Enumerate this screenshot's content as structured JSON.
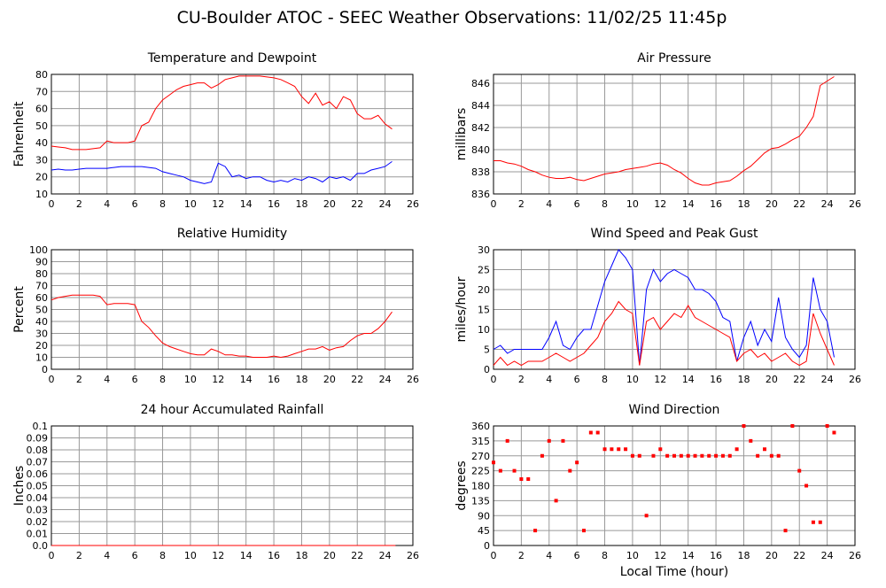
{
  "title": "CU-Boulder ATOC - SEEC Weather Observations: 11/02/25 11:45p",
  "chart_data": [
    {
      "type": "line",
      "title": "Temperature and Dewpoint",
      "ylabel": "Fahrenheit",
      "grid": true,
      "xlim": [
        0,
        26
      ],
      "xticks": [
        0,
        2,
        4,
        6,
        8,
        10,
        12,
        14,
        16,
        18,
        20,
        22,
        24,
        26
      ],
      "ylim": [
        10,
        80
      ],
      "yticks": [
        10,
        20,
        30,
        40,
        50,
        60,
        70,
        80
      ],
      "x": [
        0,
        0.5,
        1,
        1.5,
        2,
        2.5,
        3,
        3.5,
        4,
        4.5,
        5,
        5.5,
        6,
        6.5,
        7,
        7.5,
        8,
        8.5,
        9,
        9.5,
        10,
        10.5,
        11,
        11.5,
        12,
        12.5,
        13,
        13.5,
        14,
        14.5,
        15,
        15.5,
        16,
        16.5,
        17,
        17.5,
        18,
        18.5,
        19,
        19.5,
        20,
        20.5,
        21,
        21.5,
        22,
        22.5,
        23,
        23.5,
        24,
        24.5
      ],
      "series": [
        {
          "color": "#ff0000",
          "values": [
            38,
            37.5,
            37,
            36,
            36,
            36,
            36.5,
            37,
            41,
            40,
            40,
            40,
            41,
            50,
            52,
            60,
            65,
            68,
            71,
            73,
            74,
            75,
            75,
            72,
            74,
            77,
            78,
            79,
            79,
            79,
            79,
            78.5,
            78,
            77,
            75,
            73,
            67,
            63,
            69,
            62,
            64,
            60,
            67,
            65,
            57,
            54,
            54,
            56,
            51,
            48
          ]
        },
        {
          "color": "#0000ff",
          "values": [
            24,
            24.5,
            24,
            24,
            24.5,
            25,
            25,
            25,
            25,
            25.5,
            26,
            26,
            26,
            26,
            25.5,
            25,
            23,
            22,
            21,
            20,
            18,
            17,
            16,
            17,
            28,
            26,
            20,
            21,
            19,
            20,
            20,
            18,
            17,
            18,
            17,
            19,
            18,
            20,
            19,
            17,
            20,
            19,
            20,
            18,
            22,
            22,
            24,
            25,
            26,
            29
          ]
        }
      ]
    },
    {
      "type": "line",
      "title": "Air Pressure",
      "ylabel": "millibars",
      "grid": true,
      "xlim": [
        0,
        26
      ],
      "xticks": [
        0,
        2,
        4,
        6,
        8,
        10,
        12,
        14,
        16,
        18,
        20,
        22,
        24,
        26
      ],
      "ylim": [
        836,
        846.8
      ],
      "yticks": [
        836,
        838,
        840,
        842,
        844,
        846
      ],
      "x": [
        0,
        0.5,
        1,
        1.5,
        2,
        2.5,
        3,
        3.5,
        4,
        4.5,
        5,
        5.5,
        6,
        6.5,
        7,
        7.5,
        8,
        8.5,
        9,
        9.5,
        10,
        10.5,
        11,
        11.5,
        12,
        12.5,
        13,
        13.5,
        14,
        14.5,
        15,
        15.5,
        16,
        16.5,
        17,
        17.5,
        18,
        18.5,
        19,
        19.5,
        20,
        20.5,
        21,
        21.5,
        22,
        22.5,
        23,
        23.5,
        24,
        24.5
      ],
      "series": [
        {
          "color": "#ff0000",
          "values": [
            839,
            839,
            838.8,
            838.7,
            838.5,
            838.2,
            838,
            837.7,
            837.5,
            837.4,
            837.4,
            837.5,
            837.3,
            837.2,
            837.4,
            837.6,
            837.8,
            837.9,
            838,
            838.2,
            838.3,
            838.4,
            838.5,
            838.7,
            838.8,
            838.6,
            838.2,
            837.9,
            837.4,
            837,
            836.8,
            836.8,
            837,
            837.1,
            837.2,
            837.6,
            838.1,
            838.5,
            839.1,
            839.7,
            840.1,
            840.2,
            840.5,
            840.9,
            841.2,
            842,
            843,
            845.8,
            846.2,
            846.6
          ]
        }
      ]
    },
    {
      "type": "line",
      "title": "Relative Humidity",
      "ylabel": "Percent",
      "grid": true,
      "xlim": [
        0,
        26
      ],
      "xticks": [
        0,
        2,
        4,
        6,
        8,
        10,
        12,
        14,
        16,
        18,
        20,
        22,
        24,
        26
      ],
      "ylim": [
        0,
        100
      ],
      "yticks": [
        0,
        10,
        20,
        30,
        40,
        50,
        60,
        70,
        80,
        90,
        100
      ],
      "x": [
        0,
        0.5,
        1,
        1.5,
        2,
        2.5,
        3,
        3.5,
        4,
        4.5,
        5,
        5.5,
        6,
        6.5,
        7,
        7.5,
        8,
        8.5,
        9,
        9.5,
        10,
        10.5,
        11,
        11.5,
        12,
        12.5,
        13,
        13.5,
        14,
        14.5,
        15,
        15.5,
        16,
        16.5,
        17,
        17.5,
        18,
        18.5,
        19,
        19.5,
        20,
        20.5,
        21,
        21.5,
        22,
        22.5,
        23,
        23.5,
        24,
        24.5
      ],
      "series": [
        {
          "color": "#ff0000",
          "values": [
            58,
            60,
            61,
            62,
            62,
            62,
            62,
            61,
            54,
            55,
            55,
            55,
            54,
            40,
            35,
            28,
            22,
            19,
            17,
            15,
            13,
            12,
            12,
            17,
            15,
            12,
            12,
            11,
            11,
            10,
            10,
            10,
            11,
            10,
            11,
            13,
            15,
            17,
            17,
            19,
            16,
            18,
            19,
            24,
            28,
            30,
            30,
            34,
            40,
            48
          ]
        }
      ]
    },
    {
      "type": "line",
      "title": "Wind Speed and Peak Gust",
      "ylabel": "miles/hour",
      "grid": true,
      "xlim": [
        0,
        26
      ],
      "xticks": [
        0,
        2,
        4,
        6,
        8,
        10,
        12,
        14,
        16,
        18,
        20,
        22,
        24,
        26
      ],
      "ylim": [
        0,
        30
      ],
      "yticks": [
        0,
        5,
        10,
        15,
        20,
        25,
        30
      ],
      "x": [
        0,
        0.5,
        1,
        1.5,
        2,
        2.5,
        3,
        3.5,
        4,
        4.5,
        5,
        5.5,
        6,
        6.5,
        7,
        7.5,
        8,
        8.5,
        9,
        9.5,
        10,
        10.5,
        11,
        11.5,
        12,
        12.5,
        13,
        13.5,
        14,
        14.5,
        15,
        15.5,
        16,
        16.5,
        17,
        17.5,
        18,
        18.5,
        19,
        19.5,
        20,
        20.5,
        21,
        21.5,
        22,
        22.5,
        23,
        23.5,
        24,
        24.5
      ],
      "series": [
        {
          "color": "#0000ff",
          "values": [
            5,
            6,
            4,
            5,
            5,
            5,
            5,
            5,
            8,
            12,
            6,
            5,
            8,
            10,
            10,
            16,
            22,
            26,
            30,
            28,
            25,
            1,
            20,
            25,
            22,
            24,
            25,
            24,
            23,
            20,
            20,
            19,
            17,
            13,
            12,
            2,
            8,
            12,
            6,
            10,
            7,
            18,
            8,
            5,
            3,
            6,
            23,
            15,
            12,
            3
          ]
        },
        {
          "color": "#ff0000",
          "values": [
            1,
            3,
            1,
            2,
            1,
            2,
            2,
            2,
            3,
            4,
            3,
            2,
            3,
            4,
            6,
            8,
            12,
            14,
            17,
            15,
            14,
            1,
            12,
            13,
            10,
            12,
            14,
            13,
            16,
            13,
            12,
            11,
            10,
            9,
            8,
            2,
            4,
            5,
            3,
            4,
            2,
            3,
            4,
            2,
            1,
            2,
            14,
            9,
            5,
            1
          ]
        }
      ]
    },
    {
      "type": "line",
      "title": "24 hour Accumulated Rainfall",
      "ylabel": "Inches",
      "grid": true,
      "xlim": [
        0,
        26
      ],
      "xticks": [
        0,
        2,
        4,
        6,
        8,
        10,
        12,
        14,
        16,
        18,
        20,
        22,
        24,
        26
      ],
      "ylim": [
        0,
        0.1
      ],
      "yticks": [
        {
          "value": 0,
          "label": "0.0"
        },
        0.01,
        0.02,
        0.03,
        0.04,
        0.05,
        0.06,
        0.07,
        0.08,
        0.09,
        0.1
      ],
      "x": [
        0,
        24.75
      ],
      "series": [
        {
          "color": "#ff0000",
          "values": [
            0,
            0
          ]
        }
      ]
    },
    {
      "type": "scatter",
      "title": "Wind Direction",
      "ylabel": "degrees",
      "xlabel": "Local Time (hour)",
      "grid": true,
      "xlim": [
        0,
        26
      ],
      "xticks": [
        0,
        2,
        4,
        6,
        8,
        10,
        12,
        14,
        16,
        18,
        20,
        22,
        24,
        26
      ],
      "ylim": [
        0,
        360
      ],
      "yticks": [
        0,
        45,
        90,
        135,
        180,
        225,
        270,
        315,
        360
      ],
      "x": [
        0,
        0.5,
        1,
        1.5,
        2,
        2.5,
        3,
        3.5,
        4,
        4.5,
        5,
        5.5,
        6,
        6.5,
        7,
        7.5,
        8,
        8.5,
        9,
        9.5,
        10,
        10.5,
        11,
        11.5,
        12,
        12.5,
        13,
        13.5,
        14,
        14.5,
        15,
        15.5,
        16,
        16.5,
        17,
        17.5,
        18,
        18.5,
        19,
        19.5,
        20,
        20.5,
        21,
        21.5,
        22,
        22.5,
        23,
        23.5,
        24,
        24.5
      ],
      "series": [
        {
          "color": "#ff0000",
          "values": [
            250,
            225,
            315,
            225,
            200,
            200,
            45,
            270,
            315,
            135,
            315,
            225,
            250,
            45,
            340,
            340,
            290,
            290,
            290,
            290,
            270,
            270,
            90,
            270,
            290,
            270,
            270,
            270,
            270,
            270,
            270,
            270,
            270,
            270,
            270,
            290,
            360,
            315,
            270,
            290,
            270,
            270,
            45,
            360,
            225,
            180,
            70,
            70,
            360,
            340
          ]
        }
      ]
    }
  ]
}
